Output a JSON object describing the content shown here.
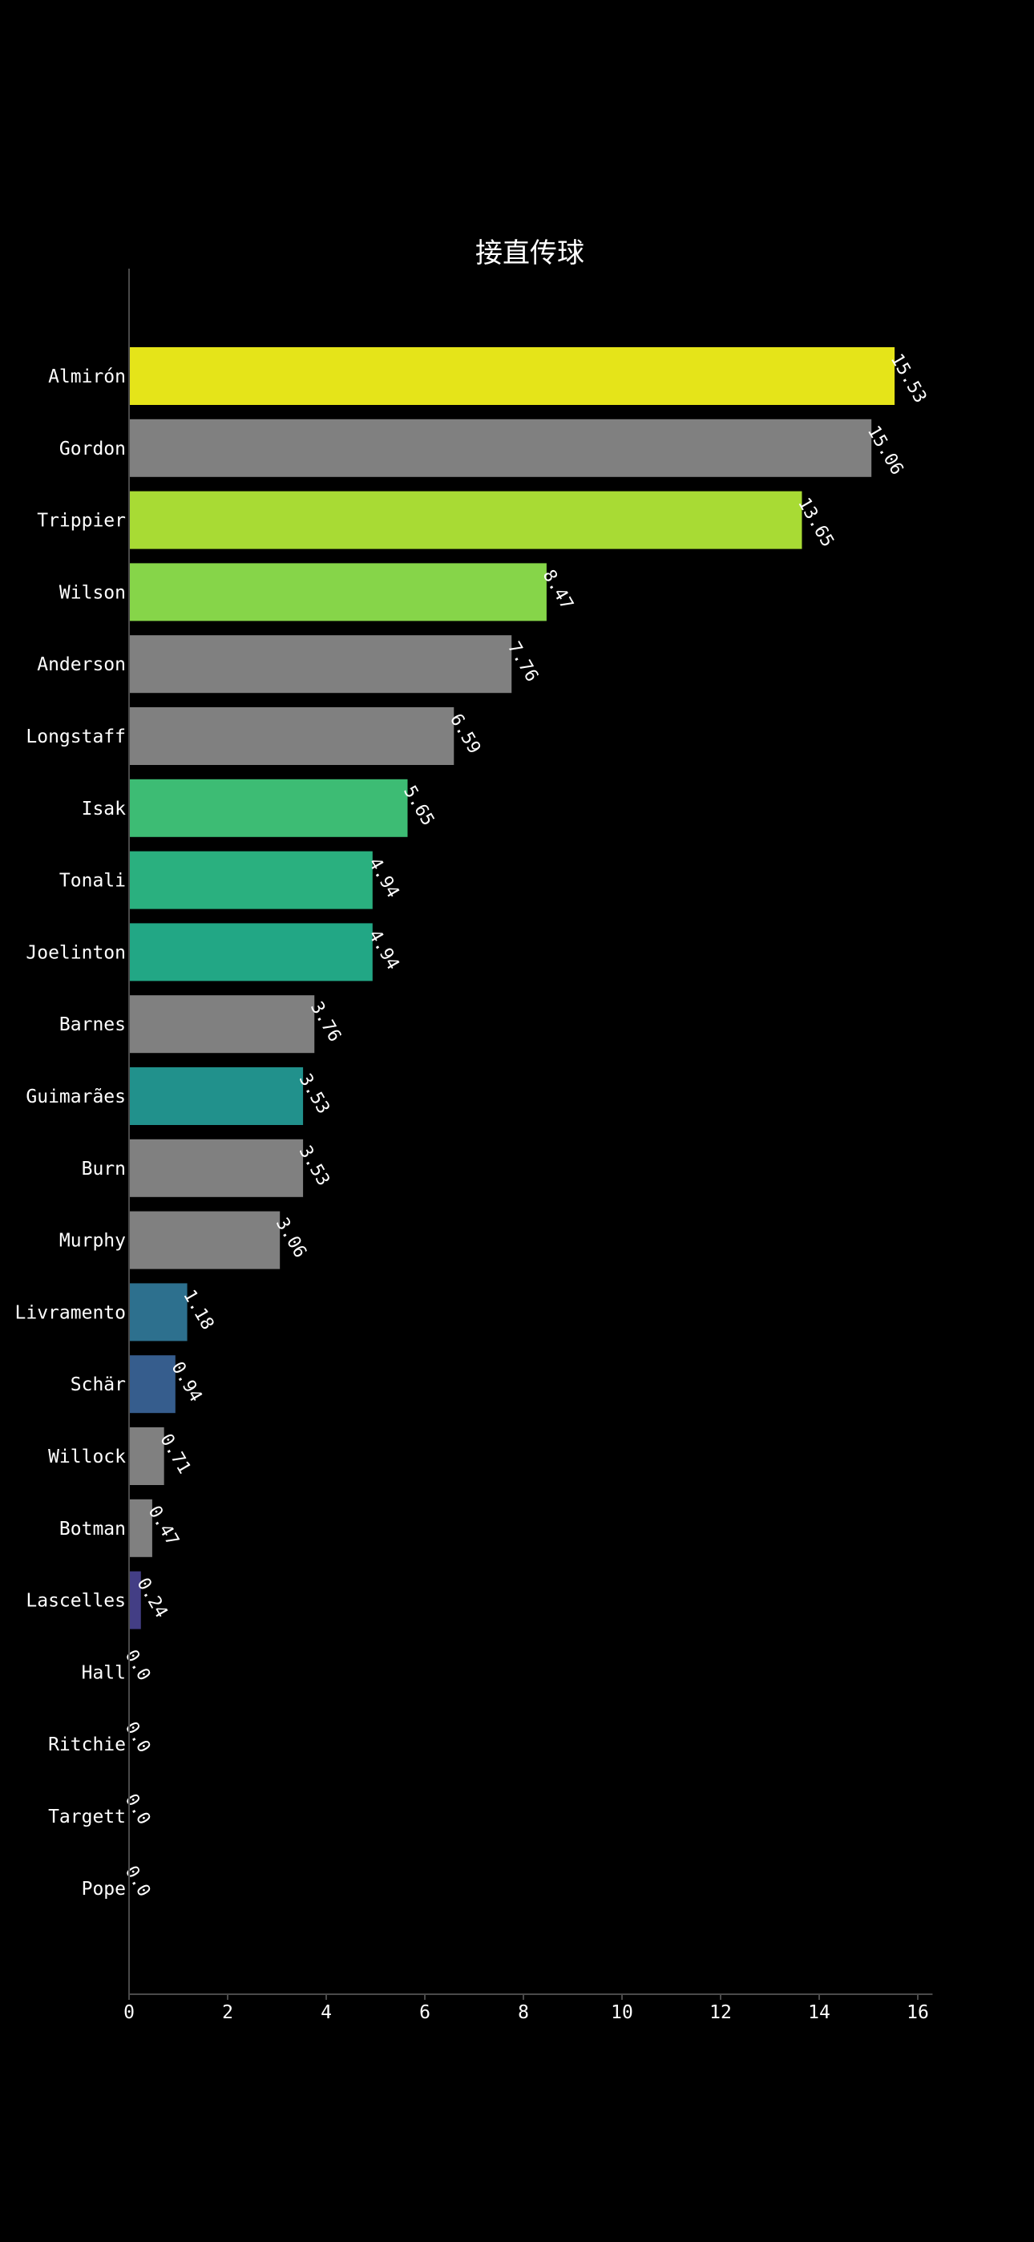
{
  "chart_data": {
    "type": "bar",
    "orientation": "horizontal",
    "title": "接直传球",
    "xlabel": "",
    "ylabel": "",
    "xlim": [
      0,
      16.3
    ],
    "x_ticks": [
      0,
      2,
      4,
      6,
      8,
      10,
      12,
      14,
      16
    ],
    "grid": false,
    "background": "#000000",
    "categories": [
      "Almirón",
      "Gordon",
      "Trippier",
      "Wilson",
      "Anderson",
      "Longstaff",
      "Isak",
      "Tonali",
      "Joelinton",
      "Barnes",
      "Guimarães",
      "Burn",
      "Murphy",
      "Livramento",
      "Schär",
      "Willock",
      "Botman",
      "Lascelles",
      "Hall",
      "Ritchie",
      "Targett",
      "Pope"
    ],
    "values": [
      15.53,
      15.06,
      13.65,
      8.47,
      7.76,
      6.59,
      5.65,
      4.94,
      4.94,
      3.76,
      3.53,
      3.53,
      3.06,
      1.18,
      0.94,
      0.71,
      0.47,
      0.24,
      0.0,
      0.0,
      0.0,
      0.0
    ],
    "value_labels": [
      "15.53",
      "15.06",
      "13.65",
      "8.47",
      "7.76",
      "6.59",
      "5.65",
      "4.94",
      "4.94",
      "3.76",
      "3.53",
      "3.53",
      "3.06",
      "1.18",
      "0.94",
      "0.71",
      "0.47",
      "0.24",
      "0.0",
      "0.0",
      "0.0",
      "0.0"
    ],
    "colors": [
      "#e5e419",
      "#808080",
      "#a8db34",
      "#86d549",
      "#808080",
      "#808080",
      "#3dbc74",
      "#2ab07f",
      "#22a785",
      "#808080",
      "#21918c",
      "#808080",
      "#808080",
      "#2d708e",
      "#365d8d",
      "#808080",
      "#808080",
      "#433e85",
      "#481b6d",
      "#481b6d",
      "#481b6d",
      "#481b6d"
    ]
  }
}
